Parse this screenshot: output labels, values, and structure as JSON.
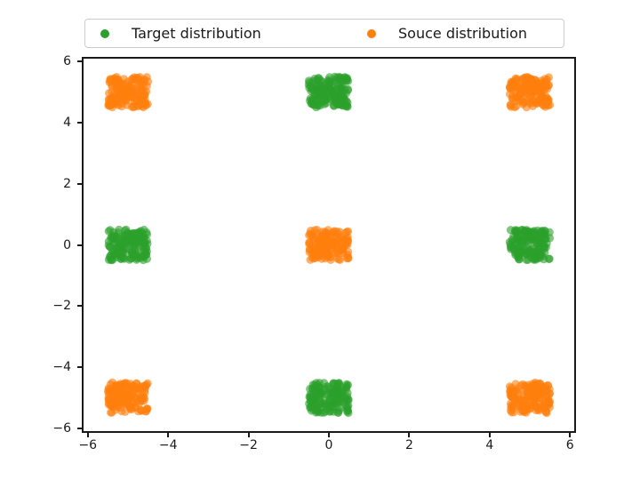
{
  "legend": {
    "items": [
      {
        "label": "Target distribution",
        "color": "#2ca02c"
      },
      {
        "label": "Souce distribution",
        "color": "#ff7f0e"
      }
    ],
    "position": "upper center, above axes",
    "frame_color": "#cccccc"
  },
  "chart_data": {
    "type": "scatter",
    "title": "",
    "xlabel": "",
    "ylabel": "",
    "xlim": [
      -6.15,
      6.15
    ],
    "ylim": [
      -6.15,
      6.15
    ],
    "xticks": [
      -6,
      -4,
      -2,
      0,
      2,
      4,
      6
    ],
    "yticks": [
      -6,
      -4,
      -2,
      0,
      2,
      4,
      6
    ],
    "grid": false,
    "marker_alpha": 0.6,
    "marker_style": "circle",
    "series": [
      {
        "name": "Target distribution",
        "color": "#2ca02c",
        "distribution": "uniform-square",
        "spread": 0.5,
        "points_per_cluster": 150,
        "clusters": [
          {
            "center": [
              0,
              5
            ]
          },
          {
            "center": [
              -5,
              0
            ]
          },
          {
            "center": [
              5,
              0
            ]
          },
          {
            "center": [
              0,
              -5
            ]
          }
        ]
      },
      {
        "name": "Souce distribution",
        "color": "#ff7f0e",
        "distribution": "uniform-square",
        "spread": 0.5,
        "points_per_cluster": 150,
        "clusters": [
          {
            "center": [
              -5,
              5
            ]
          },
          {
            "center": [
              5,
              5
            ]
          },
          {
            "center": [
              0,
              0
            ]
          },
          {
            "center": [
              -5,
              -5
            ]
          },
          {
            "center": [
              5,
              -5
            ]
          }
        ]
      }
    ]
  }
}
